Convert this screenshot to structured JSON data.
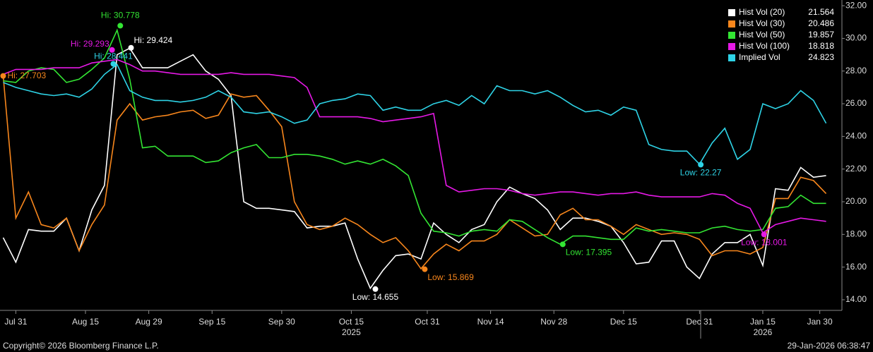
{
  "chart_data": {
    "type": "line",
    "x": [
      -2,
      0,
      2,
      4,
      6,
      8,
      10,
      12,
      14,
      16,
      18,
      20,
      22,
      24,
      26,
      28,
      30,
      32,
      34,
      36,
      38,
      40,
      42,
      44,
      46,
      48,
      50,
      52,
      54,
      56,
      58,
      60,
      62,
      64,
      66,
      68,
      70,
      72,
      74,
      76,
      78,
      80,
      82,
      84,
      86,
      88,
      90,
      92,
      94,
      96,
      98,
      100,
      102,
      104,
      106,
      108,
      110,
      112,
      114,
      116,
      118,
      120,
      122,
      124,
      126,
      128
    ],
    "series": [
      {
        "name": "Hist Vol (20)",
        "last": "21.564",
        "color": "#ffffff",
        "values": [
          17.8,
          16.3,
          18.3,
          18.2,
          18.2,
          19.0,
          17.0,
          19.5,
          21.0,
          29.0,
          29.4,
          28.2,
          28.2,
          28.2,
          28.6,
          29.0,
          28.0,
          27.5,
          26.5,
          20.0,
          19.6,
          19.6,
          19.5,
          19.4,
          18.4,
          18.5,
          18.5,
          18.7,
          16.5,
          14.7,
          15.8,
          16.7,
          16.8,
          16.5,
          18.7,
          18.0,
          17.5,
          18.3,
          18.6,
          20.0,
          20.9,
          20.5,
          20.2,
          19.5,
          18.3,
          19.0,
          19.0,
          18.8,
          18.5,
          17.5,
          16.2,
          16.3,
          17.6,
          17.6,
          16.0,
          15.3,
          16.8,
          17.5,
          17.5,
          18.0,
          16.1,
          20.8,
          20.7,
          22.1,
          21.5,
          21.6
        ]
      },
      {
        "name": "Hist Vol (30)",
        "last": "20.486",
        "color": "#f7861c",
        "values": [
          27.7,
          19.0,
          20.6,
          18.6,
          18.4,
          19.0,
          17.0,
          18.6,
          19.8,
          25.0,
          26.0,
          25.0,
          25.2,
          25.3,
          25.5,
          25.6,
          25.1,
          25.3,
          26.6,
          26.4,
          26.5,
          25.6,
          24.6,
          20.0,
          18.6,
          18.3,
          18.5,
          19.0,
          18.6,
          18.0,
          17.5,
          17.8,
          17.0,
          15.9,
          16.8,
          17.4,
          17.0,
          17.6,
          17.6,
          18.0,
          18.9,
          18.4,
          17.9,
          18.0,
          19.2,
          19.6,
          18.9,
          18.9,
          18.5,
          18.0,
          18.6,
          18.3,
          18.0,
          18.1,
          18.0,
          17.7,
          16.7,
          17.0,
          17.0,
          16.8,
          17.2,
          20.2,
          20.2,
          21.5,
          21.3,
          20.5
        ]
      },
      {
        "name": "Hist Vol (50)",
        "last": "19.857",
        "color": "#33e533",
        "values": [
          27.4,
          27.3,
          28.0,
          28.2,
          28.1,
          27.3,
          27.5,
          28.1,
          28.8,
          30.5,
          27.5,
          23.3,
          23.4,
          22.8,
          22.8,
          22.8,
          22.4,
          22.5,
          23.0,
          23.3,
          23.5,
          22.7,
          22.7,
          22.9,
          22.9,
          22.8,
          22.6,
          22.3,
          22.5,
          22.3,
          22.6,
          22.2,
          21.6,
          19.3,
          18.2,
          18.1,
          17.9,
          18.2,
          18.3,
          18.2,
          18.9,
          18.8,
          18.3,
          17.8,
          17.4,
          17.9,
          17.9,
          17.8,
          17.7,
          17.7,
          18.4,
          18.2,
          18.3,
          18.2,
          18.1,
          18.1,
          18.4,
          18.5,
          18.3,
          18.2,
          18.3,
          19.6,
          19.7,
          20.4,
          19.9,
          19.9
        ]
      },
      {
        "name": "Hist Vol (100)",
        "last": "18.818",
        "color": "#e619e6",
        "values": [
          27.8,
          28.1,
          28.1,
          28.1,
          28.2,
          28.2,
          28.2,
          28.5,
          28.6,
          28.7,
          28.4,
          28.0,
          28.0,
          27.9,
          27.8,
          27.8,
          27.8,
          27.8,
          27.9,
          27.8,
          27.8,
          27.8,
          27.7,
          27.6,
          27.0,
          25.2,
          25.2,
          25.2,
          25.2,
          25.1,
          24.9,
          25.0,
          25.1,
          25.2,
          25.4,
          21.0,
          20.6,
          20.7,
          20.8,
          20.8,
          20.7,
          20.5,
          20.4,
          20.5,
          20.6,
          20.6,
          20.5,
          20.4,
          20.5,
          20.5,
          20.6,
          20.4,
          20.3,
          20.3,
          20.3,
          20.3,
          20.5,
          20.4,
          19.9,
          19.6,
          18.1,
          18.6,
          18.8,
          19.0,
          18.9,
          18.8
        ]
      },
      {
        "name": "Implied Vol",
        "last": "24.823",
        "color": "#2ed3e6",
        "values": [
          27.3,
          27.0,
          26.8,
          26.6,
          26.5,
          26.6,
          26.4,
          26.9,
          27.8,
          28.4,
          26.8,
          26.4,
          26.2,
          26.2,
          26.1,
          26.2,
          26.4,
          26.8,
          26.4,
          25.5,
          25.4,
          25.5,
          25.2,
          24.8,
          25.0,
          26.0,
          26.2,
          26.3,
          26.6,
          26.5,
          25.6,
          25.8,
          25.6,
          25.6,
          26.0,
          26.2,
          25.9,
          26.5,
          26.0,
          27.1,
          26.8,
          26.8,
          26.6,
          26.8,
          26.4,
          25.9,
          25.5,
          25.6,
          25.3,
          25.8,
          25.6,
          23.5,
          23.2,
          23.1,
          23.1,
          22.3,
          23.6,
          24.5,
          22.6,
          23.2,
          26.0,
          25.7,
          26.0,
          26.8,
          26.2,
          24.8
        ]
      }
    ],
    "annotations": [
      {
        "series": 1,
        "x": -2,
        "value": 27.703,
        "value_label": "Hi: 27.703"
      },
      {
        "series": 2,
        "x": 16.5,
        "value": 30.778,
        "value_label": "Hi: 30.778"
      },
      {
        "series": 3,
        "x": 15.2,
        "value": 29.293,
        "value_label": "Hi: 29.293"
      },
      {
        "series": 0,
        "x": 18.2,
        "value": 29.424,
        "value_label": "Hi: 29.424"
      },
      {
        "series": 4,
        "x": 15.4,
        "value": 28.441,
        "value_label": "Hi: 28.441"
      },
      {
        "series": 0,
        "x": 56.8,
        "value": 14.655,
        "value_label": "Low: 14.655"
      },
      {
        "series": 1,
        "x": 64.6,
        "value": 15.869,
        "value_label": "Low: 15.869"
      },
      {
        "series": 2,
        "x": 86.4,
        "value": 17.395,
        "value_label": "Low: 17.395"
      },
      {
        "series": 4,
        "x": 108.2,
        "value": 22.27,
        "value_label": "Low: 22.27"
      },
      {
        "series": 3,
        "x": 118.2,
        "value": 18.001,
        "value_label": "Low: 18.001"
      }
    ],
    "xlim": [
      -2.5,
      130.5
    ],
    "xticks": [
      {
        "value": 0,
        "label": "Jul 31"
      },
      {
        "value": 11,
        "label": "Aug 15"
      },
      {
        "value": 21,
        "label": "Aug 29"
      },
      {
        "value": 31,
        "label": "Sep 15"
      },
      {
        "value": 42,
        "label": "Sep 30"
      },
      {
        "value": 53,
        "label": "Oct 15"
      },
      {
        "value": 65,
        "label": "Oct 31"
      },
      {
        "value": 75,
        "label": "Nov 14"
      },
      {
        "value": 85,
        "label": "Nov 28"
      },
      {
        "value": 96,
        "label": "Dec 15"
      },
      {
        "value": 108,
        "label": "Dec 31"
      },
      {
        "value": 118,
        "label": "Jan 15"
      },
      {
        "value": 127,
        "label": "Jan 30"
      }
    ],
    "year_labels": [
      {
        "value": 53,
        "label": "2025"
      },
      {
        "value": 118,
        "label": "2026"
      }
    ],
    "ylim": [
      13.35,
      32.35
    ],
    "yticks": [
      {
        "value": 14,
        "label": "14.00"
      },
      {
        "value": 16,
        "label": "16.00"
      },
      {
        "value": 18,
        "label": "18.00"
      },
      {
        "value": 20,
        "label": "20.00"
      },
      {
        "value": 22,
        "label": "22.00"
      },
      {
        "value": 24,
        "label": "24.00"
      },
      {
        "value": 26,
        "label": "26.00"
      },
      {
        "value": 28,
        "label": "28.00"
      },
      {
        "value": 30,
        "label": "30.00"
      },
      {
        "value": 32,
        "label": "32.00"
      }
    ],
    "copyright": "Copyright© 2026 Bloomberg Finance L.P.",
    "timestamp": "29-Jan-2026 06:38:47"
  }
}
